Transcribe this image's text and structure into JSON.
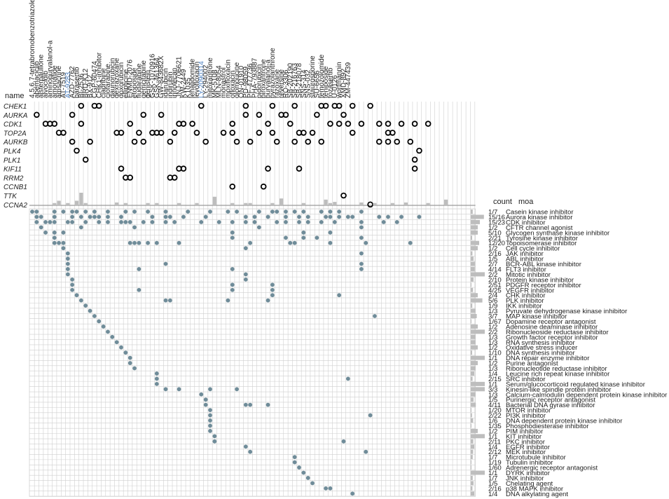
{
  "chart_data": {
    "type": "table",
    "labels": {
      "name": "name",
      "count": "count",
      "moa": "moa"
    },
    "compounds": [
      "4,5,6,7-tetrabromobenzotriazole",
      "abemaciclib",
      "alsterpaullone",
      "alvocidib",
      "aminopurvalanol-a",
      "amonafide",
      "amsacrine",
      "AT-7519",
      "AT-9283",
      "AZD-7762",
      "barasertib",
      "BI-2536",
      "BRD-K12",
      "BX-912",
      "CGP-60474",
      "CHK1-inhibitor",
      "cladribine",
      "clofarabine",
      "daunorubicin",
      "dexrazoxane",
      "doxorubicin",
      "ellipticine",
      "ENMD-2076",
      "etoposide",
      "fludarabine",
      "gemcitabine",
      "genistein",
      "GSK-1070916",
      "GSK-461364",
      "GW-843682X",
      "idarubicin",
      "indirubin",
      "irinotecan",
      "JNJ-7706621",
      "KW-2449",
      "K1035",
      "lenalidomide",
      "levofloxacin",
      "LY-2090314",
      "LY-294002",
      "mitoxantrone",
      "MK-5108",
      "MLN-8054",
      "monastrol",
      "moxifloxacin",
      "ofloxacin",
      "olomoucine",
      "ON-01910",
      "PD-98059",
      "PF-477736",
      "PHA-793887",
      "pidorubicin",
      "piroxantrone",
      "purvalanol-a",
      "pyrazolanthrone",
      "razoxane",
      "reversine",
      "RO-3306",
      "SB-202190",
      "SB-216763",
      "SB-218078",
      "SNS-314",
      "SNS-032",
      "staurosporine",
      "SU-6656",
      "temozolomide",
      "teniposide",
      "tozasertib",
      "U-0126",
      "wortmannin",
      "XMD-892",
      "ZM-447439"
    ],
    "highlighted_compounds": [
      "AT-9283",
      "LY-2090314"
    ],
    "highlight_color": "#4a7fc1",
    "genes": [
      "CHEK1",
      "AURKA",
      "CDK1",
      "TOP2A",
      "AURKB",
      "PLK4",
      "PLK1",
      "KIF11",
      "RRM2",
      "CCNB1",
      "TTK",
      "CCNA2"
    ],
    "gene_hits": [
      [
        11,
        14,
        15,
        38,
        48,
        54,
        59,
        65,
        66,
        68,
        69,
        72,
        76
      ],
      [
        1,
        9,
        25,
        29,
        48,
        51,
        56,
        57,
        64,
        70
      ],
      [
        3,
        4,
        5,
        11,
        22,
        33,
        34,
        36,
        45,
        53,
        58,
        67,
        69,
        71,
        74,
        78,
        80,
        83,
        86,
        89
      ],
      [
        6,
        7,
        19,
        20,
        24,
        27,
        28,
        29,
        32,
        37,
        43,
        45,
        51,
        54,
        60,
        61,
        63,
        72,
        80,
        81
      ],
      [
        9,
        13,
        23,
        25,
        31,
        39,
        46,
        49,
        55,
        59,
        62,
        65,
        78,
        80,
        82,
        85
      ],
      [
        10,
        87
      ],
      [
        12,
        86
      ],
      [
        20,
        33,
        34,
        53,
        60,
        86
      ],
      [
        21,
        22,
        31,
        32
      ],
      [
        45,
        52
      ],
      [
        70
      ],
      [
        76
      ]
    ],
    "compound_hit_bars": [
      0,
      0,
      0,
      0,
      0,
      0.4,
      0.8,
      0,
      0.4,
      0,
      0.8,
      2.2,
      0.4,
      0,
      0,
      0,
      0,
      0,
      0,
      0.5,
      0,
      0.4,
      0,
      0,
      0,
      0,
      0.4,
      0,
      0.4,
      0,
      0,
      0,
      0,
      0.4,
      0,
      0,
      0,
      0.4,
      0,
      0,
      0,
      1.5,
      0,
      0,
      0,
      0.4,
      0,
      0,
      0.4,
      0.4,
      0,
      0,
      0,
      0,
      0.4,
      0,
      1.2,
      0,
      0,
      0,
      0,
      0.4,
      0,
      0,
      0,
      0,
      1.0,
      0.4,
      0.6,
      0,
      0,
      0,
      0,
      0,
      0.5,
      0,
      0,
      0.4,
      0,
      0,
      0,
      0.4,
      0,
      0,
      0.5,
      0,
      0,
      0,
      0,
      0.4,
      0,
      0,
      0,
      1.0,
      0,
      0,
      0,
      0,
      0,
      0
    ],
    "moa_rows": [
      {
        "count": "1/7",
        "moa": "Casein kinase inhibitor",
        "bar": 0.14,
        "hits": [
          0,
          1,
          5,
          7,
          9,
          10,
          12,
          14,
          17,
          21,
          23,
          26,
          30,
          35,
          40,
          44,
          46,
          51,
          54,
          55,
          57,
          59,
          61,
          65,
          67,
          69,
          74
        ]
      },
      {
        "count": "15/16",
        "moa": "Aurora kinase inhibitor",
        "bar": 0.94,
        "hits": [
          1,
          2,
          5,
          9,
          11,
          13,
          14,
          15,
          17,
          20,
          27,
          30,
          31,
          34,
          39,
          48,
          50,
          53,
          57,
          60,
          62,
          66,
          67,
          69,
          71,
          72,
          78,
          80,
          83,
          87
        ]
      },
      {
        "count": "15/23",
        "moa": "CDK inhibitor",
        "bar": 0.65,
        "hits": [
          1,
          3,
          4,
          5,
          8,
          9,
          12,
          15,
          17,
          20,
          21,
          22,
          25,
          27,
          30,
          32,
          38,
          42,
          45,
          48,
          50,
          55,
          57,
          60,
          62,
          65,
          68,
          74,
          79,
          82
        ]
      },
      {
        "count": "1/2",
        "moa": "CFTR channel agonist",
        "bar": 0.5,
        "hits": [
          2,
          11,
          23,
          51,
          74
        ]
      },
      {
        "count": "5/10",
        "moa": "Glycogen synthase kinase inhibitor",
        "bar": 0.5,
        "hits": [
          3,
          5,
          7,
          45,
          61,
          67
        ]
      },
      {
        "count": "2/21",
        "moa": "Tyrosine kinase inhibitor",
        "bar": 0.1,
        "hits": [
          5,
          45,
          57,
          61,
          64,
          74
        ]
      },
      {
        "count": "12/20",
        "moa": "Topoisomerase inhibitor",
        "bar": 0.6,
        "hits": [
          5,
          6,
          7,
          22,
          23,
          24,
          26,
          28,
          33,
          49,
          58,
          59,
          67,
          75,
          85
        ]
      },
      {
        "count": "1/2",
        "moa": "Cell cycle inhibitor",
        "bar": 0.5,
        "hits": [
          7,
          48
        ]
      },
      {
        "count": "2/16",
        "moa": "JAK inhibitor",
        "bar": 0.12,
        "hits": [
          8,
          74
        ]
      },
      {
        "count": "1/5",
        "moa": "ABL inhibitor",
        "bar": 0.2,
        "hits": [
          8
        ]
      },
      {
        "count": "2/7",
        "moa": "BCR-ABL kinase inhibitor",
        "bar": 0.29,
        "hits": [
          8,
          30,
          74
        ]
      },
      {
        "count": "4/14",
        "moa": "FLT3 inhibitor",
        "bar": 0.28,
        "hits": [
          8,
          24,
          45,
          74
        ]
      },
      {
        "count": "2/2",
        "moa": "Mitotic inhibitor",
        "bar": 1.0,
        "hits": [
          8,
          48
        ]
      },
      {
        "count": "2/10",
        "moa": "Protein kinase inhibitor",
        "bar": 0.2,
        "hits": [
          9,
          48
        ]
      },
      {
        "count": "2/51",
        "moa": "PDGFR receptor inhibitor",
        "bar": 0.04,
        "hits": [
          9,
          45,
          54
        ]
      },
      {
        "count": "4/25",
        "moa": "VEGFR inhibitor",
        "bar": 0.16,
        "hits": [
          9,
          24,
          45,
          54
        ]
      },
      {
        "count": "2/4",
        "moa": "CHK inhibitor",
        "bar": 0.5,
        "hits": [
          10,
          54,
          69
        ]
      },
      {
        "count": "5/6",
        "moa": "PLK inhibitor",
        "bar": 0.83,
        "hits": [
          11,
          30,
          31,
          44,
          53
        ]
      },
      {
        "count": "1/9",
        "moa": "IKK inhibitor",
        "bar": 0.11,
        "hits": [
          12
        ]
      },
      {
        "count": "1/3",
        "moa": "Pyruvate dehydrogenase kinase inhibitor",
        "bar": 0.33,
        "hits": [
          13
        ]
      },
      {
        "count": "3/7",
        "moa": "MAP kinase inhibitor",
        "bar": 0.43,
        "hits": [
          14,
          77
        ]
      },
      {
        "count": "1/67",
        "moa": "Dopamine receptor antagonist",
        "bar": 0.015,
        "hits": [
          15
        ]
      },
      {
        "count": "1/2",
        "moa": "Adenosine deaminase inhibitor",
        "bar": 0.5,
        "hits": [
          16
        ]
      },
      {
        "count": "2/2",
        "moa": "Ribonucleoside reductase inhibitor",
        "bar": 1.0,
        "hits": [
          17
        ]
      },
      {
        "count": "1/3",
        "moa": "Growth factor receptor inhibitor",
        "bar": 0.33,
        "hits": [
          18
        ]
      },
      {
        "count": "1/3",
        "moa": "RNA synthesis inhibitor",
        "bar": 0.33,
        "hits": [
          19
        ]
      },
      {
        "count": "1/2",
        "moa": "Oxidative stress inducer",
        "bar": 0.5,
        "hits": [
          20
        ]
      },
      {
        "count": "1/10",
        "moa": "DNA synthesis inhibitor",
        "bar": 0.1,
        "hits": [
          21
        ]
      },
      {
        "count": "1/1",
        "moa": "DNA repair enzyme inhibitor",
        "bar": 1.0,
        "hits": [
          22
        ]
      },
      {
        "count": "1/2",
        "moa": "Purine antagonist",
        "bar": 0.5,
        "hits": [
          22
        ]
      },
      {
        "count": "1/3",
        "moa": "Ribonucleotide reductase inhibitor",
        "bar": 0.33,
        "hits": [
          23
        ]
      },
      {
        "count": "1/4",
        "moa": "Leucine rich repeat kinase inhibitor",
        "bar": 0.25,
        "hits": [
          28
        ]
      },
      {
        "count": "2/15",
        "moa": "SRC inhibitor",
        "bar": 0.13,
        "hits": [
          28,
          71
        ]
      },
      {
        "count": "1/1",
        "moa": "Serum/glucocorticoid regulated kinase inhibitor",
        "bar": 1.0,
        "hits": [
          28
        ]
      },
      {
        "count": "3/3",
        "moa": "Kinesin-like spindle protein inhibitor",
        "bar": 1.0,
        "hits": [
          30,
          33,
          40,
          46
        ]
      },
      {
        "count": "1/3",
        "moa": "Calcium-calmodulin dependent protein kinase inhibitor",
        "bar": 0.33,
        "hits": [
          38
        ]
      },
      {
        "count": "1/5",
        "moa": "Purinergic receptor antagonist",
        "bar": 0.2,
        "hits": [
          39
        ]
      },
      {
        "count": "4/11",
        "moa": "Bacterial DNA gyrase inhibitor",
        "bar": 0.36,
        "hits": [
          39,
          48,
          49,
          53
        ]
      },
      {
        "count": "1/20",
        "moa": "MTOR inhibitor",
        "bar": 0.05,
        "hits": [
          40
        ]
      },
      {
        "count": "2/22",
        "moa": "PI3K inhibitor",
        "bar": 0.09,
        "hits": [
          40,
          76
        ]
      },
      {
        "count": "1/6",
        "moa": "DNA dependent protein kinase inhibitor",
        "bar": 0.17,
        "hits": [
          40
        ]
      },
      {
        "count": "1/35",
        "moa": "Phosphodiesterase inhibitor",
        "bar": 0.03,
        "hits": [
          40
        ]
      },
      {
        "count": "1/2",
        "moa": "PIM inhibitor",
        "bar": 0.5,
        "hits": [
          40
        ]
      },
      {
        "count": "1/1",
        "moa": "KIT inhibitor",
        "bar": 1.0,
        "hits": [
          41
        ]
      },
      {
        "count": "2/11",
        "moa": "PKC inhibitor",
        "bar": 0.18,
        "hits": [
          41,
          70
        ]
      },
      {
        "count": "1/4",
        "moa": "EGFR inhibitor",
        "bar": 0.25,
        "hits": [
          48
        ]
      },
      {
        "count": "2/12",
        "moa": "MEK inhibitor",
        "bar": 0.17,
        "hits": [
          49,
          75
        ]
      },
      {
        "count": "1/7",
        "moa": "Microtubule inhibitor",
        "bar": 0.14,
        "hits": [
          59
        ]
      },
      {
        "count": "1/19",
        "moa": "Tubulin inhibitor",
        "bar": 0.05,
        "hits": [
          59
        ]
      },
      {
        "count": "1/60",
        "moa": "Adrenergic receptor antagonist",
        "bar": 0.017,
        "hits": [
          60
        ]
      },
      {
        "count": "1/1",
        "moa": "DYRK inhibitor",
        "bar": 1.0,
        "hits": [
          61
        ]
      },
      {
        "count": "1/7",
        "moa": "JNK inhibitor",
        "bar": 0.14,
        "hits": [
          62
        ]
      },
      {
        "count": "1/5",
        "moa": "Chelating agent",
        "bar": 0.2,
        "hits": [
          63
        ]
      },
      {
        "count": "2/16",
        "moa": "p38 MAPK inhibitor",
        "bar": 0.12,
        "hits": [
          66,
          67
        ]
      },
      {
        "count": "1/4",
        "moa": "DNA alkylating agent",
        "bar": 0.25,
        "hits": [
          72
        ]
      }
    ],
    "colors": {
      "dot": "#6f8c99",
      "grid": "#cfcfcf",
      "ring": "#000000",
      "bar": "#bdbdbd",
      "gene_label": "#222222",
      "text": "#222222"
    }
  }
}
